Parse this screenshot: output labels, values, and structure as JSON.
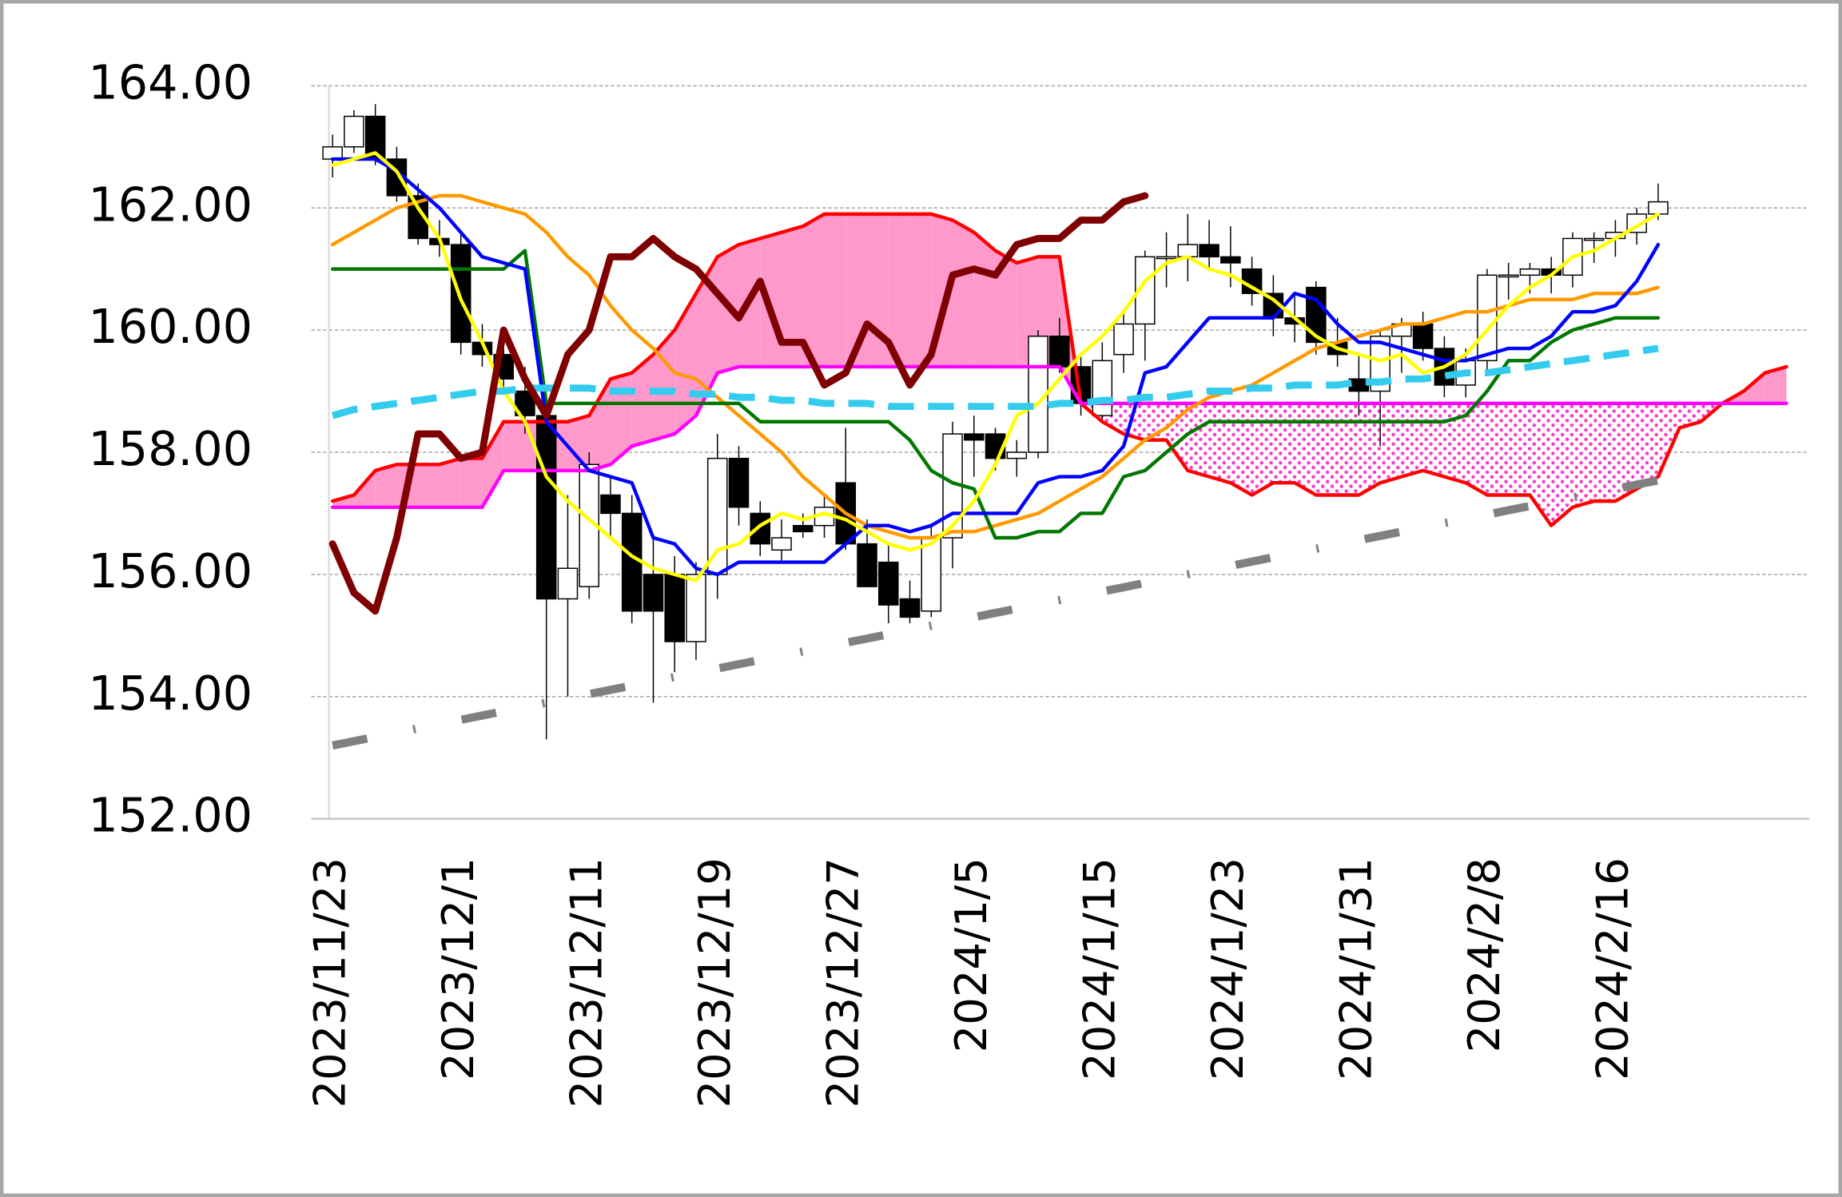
{
  "chart_data": {
    "type": "candlestick",
    "categories": [
      "2023/11/23",
      null,
      null,
      null,
      null,
      null,
      "2023/12/1",
      null,
      null,
      null,
      null,
      null,
      "2023/12/11",
      null,
      null,
      null,
      null,
      null,
      "2023/12/19",
      null,
      null,
      null,
      null,
      null,
      "2023/12/27",
      null,
      null,
      null,
      null,
      null,
      "2024/1/5",
      null,
      null,
      null,
      null,
      null,
      "2024/1/15",
      null,
      null,
      null,
      null,
      null,
      "2024/1/23",
      null,
      null,
      null,
      null,
      null,
      "2024/1/31",
      null,
      null,
      null,
      null,
      null,
      "2024/2/8",
      null,
      null,
      null,
      null,
      null,
      "2024/2/16",
      null,
      null,
      null,
      null,
      null,
      null,
      null,
      null,
      null
    ],
    "ylim": [
      152,
      164
    ],
    "yticks": [
      {
        "value": 152,
        "label": "152.00"
      },
      {
        "value": 154,
        "label": "154.00"
      },
      {
        "value": 156,
        "label": "156.00"
      },
      {
        "value": 158,
        "label": "158.00"
      },
      {
        "value": 160,
        "label": "160.00"
      },
      {
        "value": 162,
        "label": "162.00"
      },
      {
        "value": 164,
        "label": "164.00"
      }
    ],
    "grid": true,
    "candles": {
      "up_color": "#ffffff",
      "down_color": "#000000",
      "open": [
        162.8,
        163.0,
        163.5,
        162.8,
        162.2,
        161.5,
        161.4,
        159.8,
        159.6,
        159.0,
        158.6,
        155.6,
        155.8,
        157.3,
        157.0,
        156.0,
        156.0,
        154.9,
        156.0,
        157.9,
        157.0,
        156.4,
        156.8,
        156.8,
        157.5,
        156.5,
        156.2,
        155.6,
        155.4,
        156.6,
        158.3,
        158.3,
        157.9,
        158.0,
        159.9,
        159.4,
        158.6,
        159.6,
        160.1,
        161.2,
        161.2,
        161.4,
        161.2,
        161.0,
        160.6,
        160.2,
        160.7,
        159.8,
        159.2,
        159.0,
        159.9,
        160.1,
        159.7,
        159.1,
        159.5,
        160.9,
        160.9,
        161.0,
        160.9,
        161.5,
        161.5,
        161.6,
        161.9,
        null,
        null,
        null,
        null,
        null,
        null,
        null
      ],
      "high": [
        163.2,
        163.6,
        163.7,
        163.0,
        162.4,
        161.8,
        161.6,
        160.1,
        160.0,
        159.4,
        158.9,
        157.3,
        158.0,
        157.6,
        157.3,
        156.6,
        156.3,
        156.2,
        158.3,
        158.1,
        157.2,
        156.9,
        157.0,
        157.3,
        158.4,
        156.9,
        156.5,
        155.9,
        156.8,
        158.5,
        158.6,
        158.4,
        158.2,
        160.0,
        160.2,
        159.6,
        159.8,
        160.3,
        161.3,
        161.6,
        161.9,
        161.8,
        161.7,
        161.2,
        160.9,
        160.6,
        160.8,
        160.2,
        159.6,
        160.0,
        160.2,
        160.3,
        159.9,
        159.7,
        161.0,
        161.1,
        161.1,
        161.2,
        161.6,
        161.6,
        161.8,
        162.0,
        162.4,
        null,
        null,
        null,
        null,
        null,
        null,
        null
      ],
      "low": [
        162.5,
        162.9,
        162.7,
        162.1,
        161.4,
        161.2,
        159.6,
        159.4,
        159.0,
        158.3,
        153.3,
        154.0,
        155.6,
        156.6,
        155.2,
        153.9,
        154.4,
        154.6,
        155.6,
        156.8,
        156.3,
        156.2,
        156.6,
        156.6,
        156.4,
        155.8,
        155.2,
        155.2,
        155.3,
        156.1,
        157.6,
        157.7,
        157.6,
        157.9,
        159.3,
        158.6,
        158.5,
        159.3,
        159.5,
        160.7,
        160.8,
        161.0,
        160.7,
        160.4,
        159.9,
        159.8,
        159.6,
        159.4,
        158.6,
        158.1,
        159.3,
        159.5,
        158.9,
        158.9,
        159.3,
        160.5,
        160.6,
        160.6,
        160.7,
        161.1,
        161.2,
        161.4,
        161.8,
        null,
        null,
        null,
        null,
        null,
        null,
        null
      ],
      "close": [
        163.0,
        163.5,
        162.8,
        162.2,
        161.5,
        161.4,
        159.8,
        159.6,
        159.2,
        158.6,
        155.6,
        156.1,
        157.8,
        157.0,
        155.4,
        155.4,
        154.9,
        156.0,
        157.9,
        157.1,
        156.5,
        156.6,
        156.7,
        157.1,
        156.5,
        155.8,
        155.5,
        155.3,
        156.6,
        158.3,
        158.2,
        157.9,
        158.0,
        159.9,
        159.4,
        158.8,
        159.5,
        160.1,
        161.2,
        161.2,
        161.4,
        161.2,
        161.1,
        160.6,
        160.2,
        160.1,
        159.8,
        159.6,
        159.0,
        159.9,
        160.1,
        159.7,
        159.1,
        159.5,
        160.9,
        160.9,
        161.0,
        160.9,
        161.5,
        161.5,
        161.6,
        161.9,
        162.1,
        null,
        null,
        null,
        null,
        null,
        null,
        null
      ]
    },
    "cloud": {
      "solid_color": "#ff99cc",
      "dotted_color": "#ff33cc",
      "span_a": {
        "color": "#ff0000",
        "values": [
          157.2,
          157.3,
          157.7,
          157.8,
          157.8,
          157.8,
          157.9,
          157.9,
          158.5,
          158.5,
          158.5,
          158.5,
          158.6,
          159.2,
          159.3,
          159.6,
          160.0,
          160.6,
          161.2,
          161.4,
          161.5,
          161.6,
          161.7,
          161.9,
          161.9,
          161.9,
          161.9,
          161.9,
          161.9,
          161.8,
          161.6,
          161.3,
          161.1,
          161.2,
          161.2,
          158.8,
          158.5,
          158.3,
          158.2,
          158.2,
          157.7,
          157.6,
          157.5,
          157.3,
          157.5,
          157.5,
          157.3,
          157.3,
          157.3,
          157.5,
          157.6,
          157.7,
          157.6,
          157.5,
          157.3,
          157.3,
          157.3,
          156.8,
          157.1,
          157.2,
          157.2,
          157.4,
          157.6,
          158.4,
          158.5,
          158.8,
          159.0,
          159.3,
          159.4,
          null
        ]
      },
      "span_b": {
        "color": "#ff00ff",
        "values": [
          157.1,
          157.1,
          157.1,
          157.1,
          157.1,
          157.1,
          157.1,
          157.1,
          157.7,
          157.7,
          157.7,
          157.7,
          157.7,
          157.8,
          158.1,
          158.2,
          158.3,
          158.6,
          159.3,
          159.4,
          159.4,
          159.4,
          159.4,
          159.4,
          159.4,
          159.4,
          159.4,
          159.4,
          159.4,
          159.4,
          159.4,
          159.4,
          159.4,
          159.4,
          159.4,
          158.8,
          158.8,
          158.8,
          158.8,
          158.8,
          158.8,
          158.8,
          158.8,
          158.8,
          158.8,
          158.8,
          158.8,
          158.8,
          158.8,
          158.8,
          158.8,
          158.8,
          158.8,
          158.8,
          158.8,
          158.8,
          158.8,
          158.8,
          158.8,
          158.8,
          158.8,
          158.8,
          158.8,
          158.8,
          158.8,
          158.8,
          158.8,
          158.8,
          158.8,
          null
        ]
      }
    },
    "series": [
      {
        "color": "#808080",
        "width": 7,
        "dash": "30 40 2 40",
        "values": [
          153.2,
          153.27,
          153.34,
          153.41,
          153.48,
          153.55,
          153.62,
          153.69,
          153.76,
          153.83,
          153.9,
          153.97,
          154.04,
          154.11,
          154.18,
          154.25,
          154.32,
          154.39,
          154.46,
          154.53,
          154.6,
          154.67,
          154.74,
          154.81,
          154.88,
          154.95,
          155.02,
          155.09,
          155.16,
          155.23,
          155.3,
          155.37,
          155.44,
          155.51,
          155.58,
          155.65,
          155.72,
          155.79,
          155.86,
          155.93,
          156.0,
          156.07,
          156.14,
          156.21,
          156.28,
          156.35,
          156.42,
          156.49,
          156.56,
          156.63,
          156.7,
          156.77,
          156.84,
          156.91,
          156.98,
          157.05,
          157.12,
          157.19,
          157.26,
          157.33,
          157.4,
          157.47,
          157.54,
          null,
          null,
          null,
          null,
          null,
          null,
          null
        ]
      },
      {
        "color": "#ff9900",
        "width": 3,
        "values": [
          161.4,
          161.6,
          161.8,
          162.0,
          162.1,
          162.2,
          162.2,
          162.1,
          162.0,
          161.9,
          161.6,
          161.2,
          160.9,
          160.4,
          160.0,
          159.7,
          159.3,
          159.2,
          158.9,
          158.6,
          158.3,
          158.0,
          157.6,
          157.3,
          157.0,
          156.8,
          156.7,
          156.6,
          156.6,
          156.7,
          156.7,
          156.8,
          156.9,
          157.0,
          157.2,
          157.4,
          157.6,
          157.9,
          158.2,
          158.4,
          158.7,
          158.9,
          159.0,
          159.1,
          159.3,
          159.5,
          159.7,
          159.8,
          159.9,
          160.0,
          160.1,
          160.1,
          160.2,
          160.3,
          160.3,
          160.4,
          160.5,
          160.5,
          160.5,
          160.6,
          160.6,
          160.6,
          160.7,
          null,
          null,
          null,
          null,
          null,
          null,
          null
        ]
      },
      {
        "color": "#007700",
        "width": 3,
        "values": [
          161.0,
          161.0,
          161.0,
          161.0,
          161.0,
          161.0,
          161.0,
          161.0,
          161.0,
          161.3,
          158.8,
          158.8,
          158.8,
          158.8,
          158.8,
          158.8,
          158.8,
          158.8,
          158.8,
          158.8,
          158.5,
          158.5,
          158.5,
          158.5,
          158.5,
          158.5,
          158.5,
          158.2,
          157.7,
          157.5,
          157.4,
          156.6,
          156.6,
          156.7,
          156.7,
          157.0,
          157.0,
          157.6,
          157.7,
          158.0,
          158.3,
          158.5,
          158.5,
          158.5,
          158.5,
          158.5,
          158.5,
          158.5,
          158.5,
          158.5,
          158.5,
          158.5,
          158.5,
          158.6,
          159.0,
          159.5,
          159.5,
          159.8,
          160.0,
          160.1,
          160.2,
          160.2,
          160.2,
          null,
          null,
          null,
          null,
          null,
          null,
          null
        ]
      },
      {
        "color": "#0000ff",
        "width": 3,
        "values": [
          162.8,
          162.8,
          162.8,
          162.6,
          162.3,
          162.0,
          161.6,
          161.2,
          161.1,
          161.0,
          158.5,
          158.1,
          157.7,
          157.6,
          157.5,
          156.6,
          156.5,
          156.1,
          156.0,
          156.2,
          156.2,
          156.2,
          156.2,
          156.2,
          156.5,
          156.8,
          156.8,
          156.7,
          156.8,
          157.0,
          157.0,
          157.0,
          157.0,
          157.5,
          157.6,
          157.6,
          157.7,
          158.1,
          159.3,
          159.4,
          159.8,
          160.2,
          160.2,
          160.2,
          160.2,
          160.6,
          160.5,
          160.1,
          159.8,
          159.8,
          159.7,
          159.6,
          159.5,
          159.5,
          159.6,
          159.7,
          159.7,
          159.9,
          160.3,
          160.3,
          160.4,
          160.8,
          161.4,
          null,
          null,
          null,
          null,
          null,
          null,
          null
        ]
      },
      {
        "color": "#ffff00",
        "width": 3,
        "values": [
          162.7,
          162.8,
          162.9,
          162.6,
          162.0,
          161.5,
          160.5,
          159.8,
          159.0,
          158.5,
          157.6,
          157.2,
          156.9,
          156.6,
          156.3,
          156.1,
          156.0,
          155.9,
          156.4,
          156.5,
          156.8,
          157.0,
          156.9,
          157.0,
          156.9,
          156.7,
          156.5,
          156.4,
          156.5,
          156.8,
          157.2,
          157.8,
          158.6,
          158.8,
          159.2,
          159.6,
          159.9,
          160.3,
          160.8,
          161.1,
          161.2,
          161.0,
          160.9,
          160.7,
          160.5,
          160.2,
          159.9,
          159.7,
          159.6,
          159.5,
          159.6,
          159.3,
          159.4,
          159.6,
          160.0,
          160.4,
          160.7,
          160.9,
          161.2,
          161.3,
          161.5,
          161.7,
          161.9,
          null,
          null,
          null,
          null,
          null,
          null,
          null
        ]
      },
      {
        "color": "#33ccee",
        "width": 6,
        "dash": "22 12",
        "values": [
          158.6,
          158.7,
          158.75,
          158.8,
          158.85,
          158.9,
          158.95,
          159.0,
          159.0,
          159.05,
          159.05,
          159.05,
          159.05,
          159.0,
          159.0,
          159.0,
          159.0,
          158.95,
          158.95,
          158.9,
          158.9,
          158.85,
          158.85,
          158.8,
          158.8,
          158.8,
          158.75,
          158.75,
          158.75,
          158.75,
          158.75,
          158.75,
          158.75,
          158.75,
          158.8,
          158.8,
          158.85,
          158.85,
          158.9,
          158.9,
          158.95,
          159.0,
          159.0,
          159.05,
          159.05,
          159.1,
          159.1,
          159.1,
          159.15,
          159.15,
          159.2,
          159.2,
          159.25,
          159.3,
          159.3,
          159.35,
          159.4,
          159.45,
          159.5,
          159.55,
          159.6,
          159.65,
          159.7,
          null,
          null,
          null,
          null,
          null,
          null,
          null
        ]
      },
      {
        "color": "#7f0000",
        "width": 6,
        "values": [
          156.5,
          155.7,
          155.4,
          156.6,
          158.3,
          158.3,
          157.9,
          158.0,
          160.0,
          159.2,
          158.6,
          159.6,
          160.0,
          161.2,
          161.2,
          161.5,
          161.2,
          161.0,
          160.6,
          160.2,
          160.8,
          159.8,
          159.8,
          159.1,
          159.3,
          160.1,
          159.8,
          159.1,
          159.6,
          160.9,
          161.0,
          160.9,
          161.4,
          161.5,
          161.5,
          161.8,
          161.8,
          162.1,
          162.2,
          null,
          null,
          null,
          null,
          null,
          null,
          null,
          null,
          null,
          null,
          null,
          null,
          null,
          null,
          null,
          null,
          null,
          null,
          null,
          null,
          null,
          null,
          null,
          null,
          null,
          null,
          null,
          null,
          null,
          null,
          null
        ]
      }
    ]
  }
}
